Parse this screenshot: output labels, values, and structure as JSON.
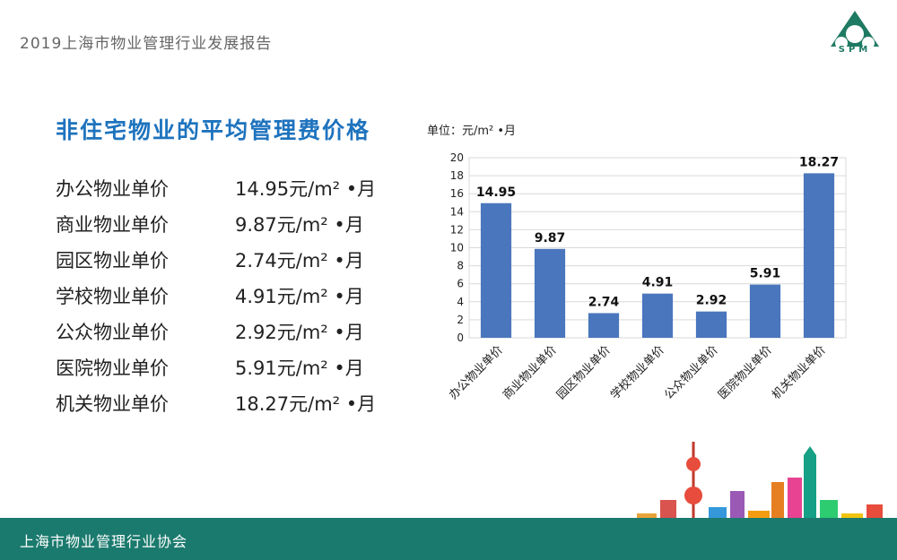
{
  "header": {
    "report_title": "2019上海市物业管理行业发展报告",
    "logo_text": "SPM"
  },
  "section_title": "非住宅物业的平均管理费价格",
  "price_list": [
    {
      "label": "办公物业单价",
      "value": "14.95元/m² •月"
    },
    {
      "label": "商业物业单价",
      "value": "9.87元/m² •月"
    },
    {
      "label": "园区物业单价",
      "value": "2.74元/m² •月"
    },
    {
      "label": "学校物业单价",
      "value": "4.91元/m² •月"
    },
    {
      "label": "公众物业单价",
      "value": "2.92元/m² •月"
    },
    {
      "label": "医院物业单价",
      "value": "5.91元/m² •月"
    },
    {
      "label": "机关物业单价",
      "value": "18.27元/m² •月"
    }
  ],
  "chart_data": {
    "type": "bar",
    "unit_label": "单位：元/m² •月",
    "categories": [
      "办公物业单价",
      "商业物业单价",
      "园区物业单价",
      "学校物业单价",
      "公众物业单价",
      "医院物业单价",
      "机关物业单价"
    ],
    "values": [
      14.95,
      9.87,
      2.74,
      4.91,
      2.92,
      5.91,
      18.27
    ],
    "data_labels": [
      "14.95",
      "9.87",
      "2.74",
      "4.91",
      "2.92",
      "5.91",
      "18.27"
    ],
    "yticks": [
      0,
      2,
      4,
      6,
      8,
      10,
      12,
      14,
      16,
      18,
      20
    ],
    "ylim": [
      0,
      20
    ],
    "grid": true,
    "bar_color": "#4a76bd"
  },
  "footer": {
    "org_name": "上海市物业管理行业协会"
  },
  "colors": {
    "accent_blue": "#1e73be",
    "footer_green": "#1b7a6e",
    "logo_green": "#1f7a63"
  }
}
